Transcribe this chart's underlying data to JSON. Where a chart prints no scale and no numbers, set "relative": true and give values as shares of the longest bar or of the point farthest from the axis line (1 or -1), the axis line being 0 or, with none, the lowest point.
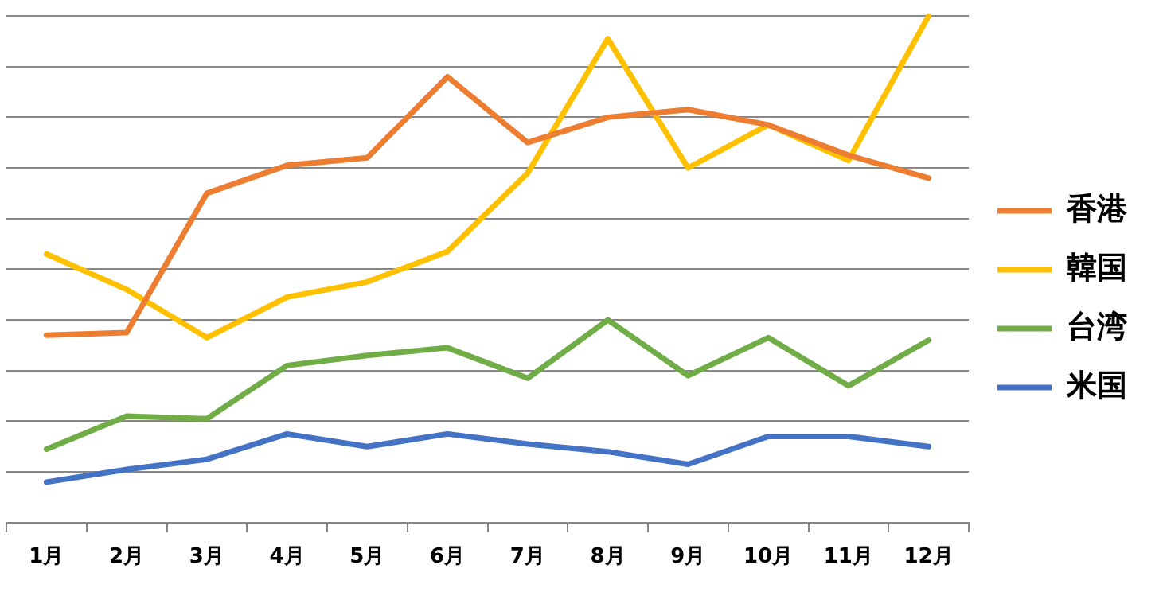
{
  "chart_data": {
    "type": "line",
    "relative": true,
    "categories": [
      "1月",
      "2月",
      "3月",
      "4月",
      "5月",
      "6月",
      "7月",
      "8月",
      "9月",
      "10月",
      "11月",
      "12月"
    ],
    "series": [
      {
        "name": "香港",
        "color": "#ed7d31",
        "values": [
          0.37,
          0.375,
          0.65,
          0.705,
          0.72,
          0.88,
          0.75,
          0.8,
          0.815,
          0.785,
          0.725,
          0.68
        ]
      },
      {
        "name": "韓国",
        "color": "#ffc000",
        "values": [
          0.53,
          0.46,
          0.365,
          0.445,
          0.475,
          0.535,
          0.69,
          0.955,
          0.7,
          0.785,
          0.715,
          1
        ]
      },
      {
        "name": "台湾",
        "color": "#70ad47",
        "values": [
          0.145,
          0.21,
          0.205,
          0.31,
          0.33,
          0.345,
          0.285,
          0.4,
          0.29,
          0.365,
          0.27,
          0.36
        ]
      },
      {
        "name": "米国",
        "color": "#4472c4",
        "values": [
          0.08,
          0.105,
          0.125,
          0.175,
          0.15,
          0.175,
          0.155,
          0.14,
          0.115,
          0.17,
          0.17,
          0.15
        ]
      }
    ],
    "grid": "y",
    "legend": "right",
    "marker": "none",
    "line_style": "solid"
  }
}
